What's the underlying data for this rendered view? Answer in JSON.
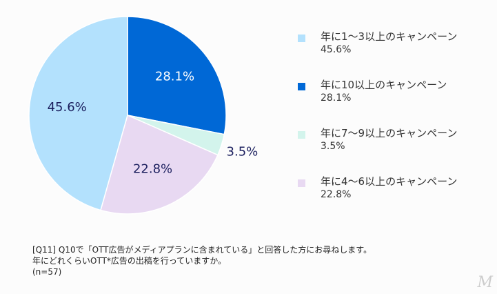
{
  "chart_data": {
    "type": "pie",
    "start": "top",
    "direction": "clockwise",
    "slices": [
      {
        "label": "年に10以上のキャンペーン",
        "value": 28.1,
        "display": "28.1%",
        "color": "#0068d6",
        "text_color": "#ffffff"
      },
      {
        "label": "年に7〜9以上のキャンペーン",
        "value": 3.5,
        "display": "3.5%",
        "color": "#d3f4ec",
        "text_color": "#1b1f5e"
      },
      {
        "label": "年に4〜6以上のキャンペーン",
        "value": 22.8,
        "display": "22.8%",
        "color": "#e8d9f2",
        "text_color": "#1b1f5e"
      },
      {
        "label": "年に1〜3以上のキャンペーン",
        "value": 45.6,
        "display": "45.6%",
        "color": "#b3e1fd",
        "text_color": "#1b1f5e"
      }
    ],
    "legend_order": [
      3,
      0,
      1,
      2
    ],
    "legend_placement": "right"
  },
  "caption": {
    "line1": "[Q11] Q10で「OTT広告がメディアプランに含まれている」と回答した方にお尋ねします。",
    "line2": "年にどれくらいOTT*広告の出稿を行っていますか。",
    "line3": "(n=57)"
  },
  "logo": "M"
}
